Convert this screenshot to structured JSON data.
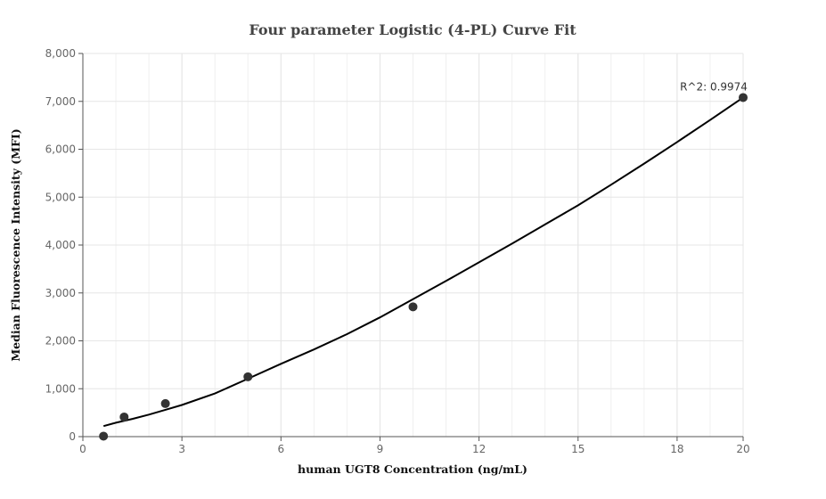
{
  "chart_data": {
    "type": "scatter",
    "title": "Four parameter Logistic (4-PL) Curve Fit",
    "xlabel": "human UGT8 Concentration (ng/mL)",
    "ylabel": "Median Fluorescence Intensity (MFI)",
    "xlim": [
      0,
      20
    ],
    "ylim": [
      0,
      8000
    ],
    "x_ticks": [
      0,
      3,
      6,
      9,
      12,
      15,
      18,
      20
    ],
    "x_tick_labels": [
      "0",
      "3",
      "6",
      "9",
      "12",
      "15",
      "18",
      "20"
    ],
    "y_ticks": [
      0,
      1000,
      2000,
      3000,
      4000,
      5000,
      6000,
      7000,
      8000
    ],
    "y_tick_labels": [
      "0",
      "1,000",
      "2,000",
      "3,000",
      "4,000",
      "5,000",
      "6,000",
      "7,000",
      "8,000"
    ],
    "minor_x_step": 1,
    "grid": true,
    "series": [
      {
        "name": "Standards",
        "kind": "points",
        "color": "#333333",
        "x": [
          0.625,
          1.25,
          2.5,
          5,
          10,
          20
        ],
        "y": [
          10,
          410,
          690,
          1250,
          2710,
          7080
        ]
      },
      {
        "name": "4-PL fit",
        "kind": "line",
        "color": "#000000",
        "x": [
          0.625,
          1,
          1.5,
          2,
          2.5,
          3,
          4,
          5,
          6,
          7,
          8,
          9,
          10,
          11,
          12,
          13,
          14,
          15,
          16,
          17,
          18,
          19,
          20
        ],
        "y": [
          220,
          290,
          370,
          460,
          560,
          660,
          900,
          1210,
          1520,
          1820,
          2140,
          2490,
          2870,
          3250,
          3640,
          4030,
          4430,
          4830,
          5260,
          5700,
          6150,
          6610,
          7080
        ]
      }
    ],
    "annotations": [
      {
        "text": "R^2: 0.9974",
        "x": 20,
        "y": 7080
      }
    ]
  }
}
